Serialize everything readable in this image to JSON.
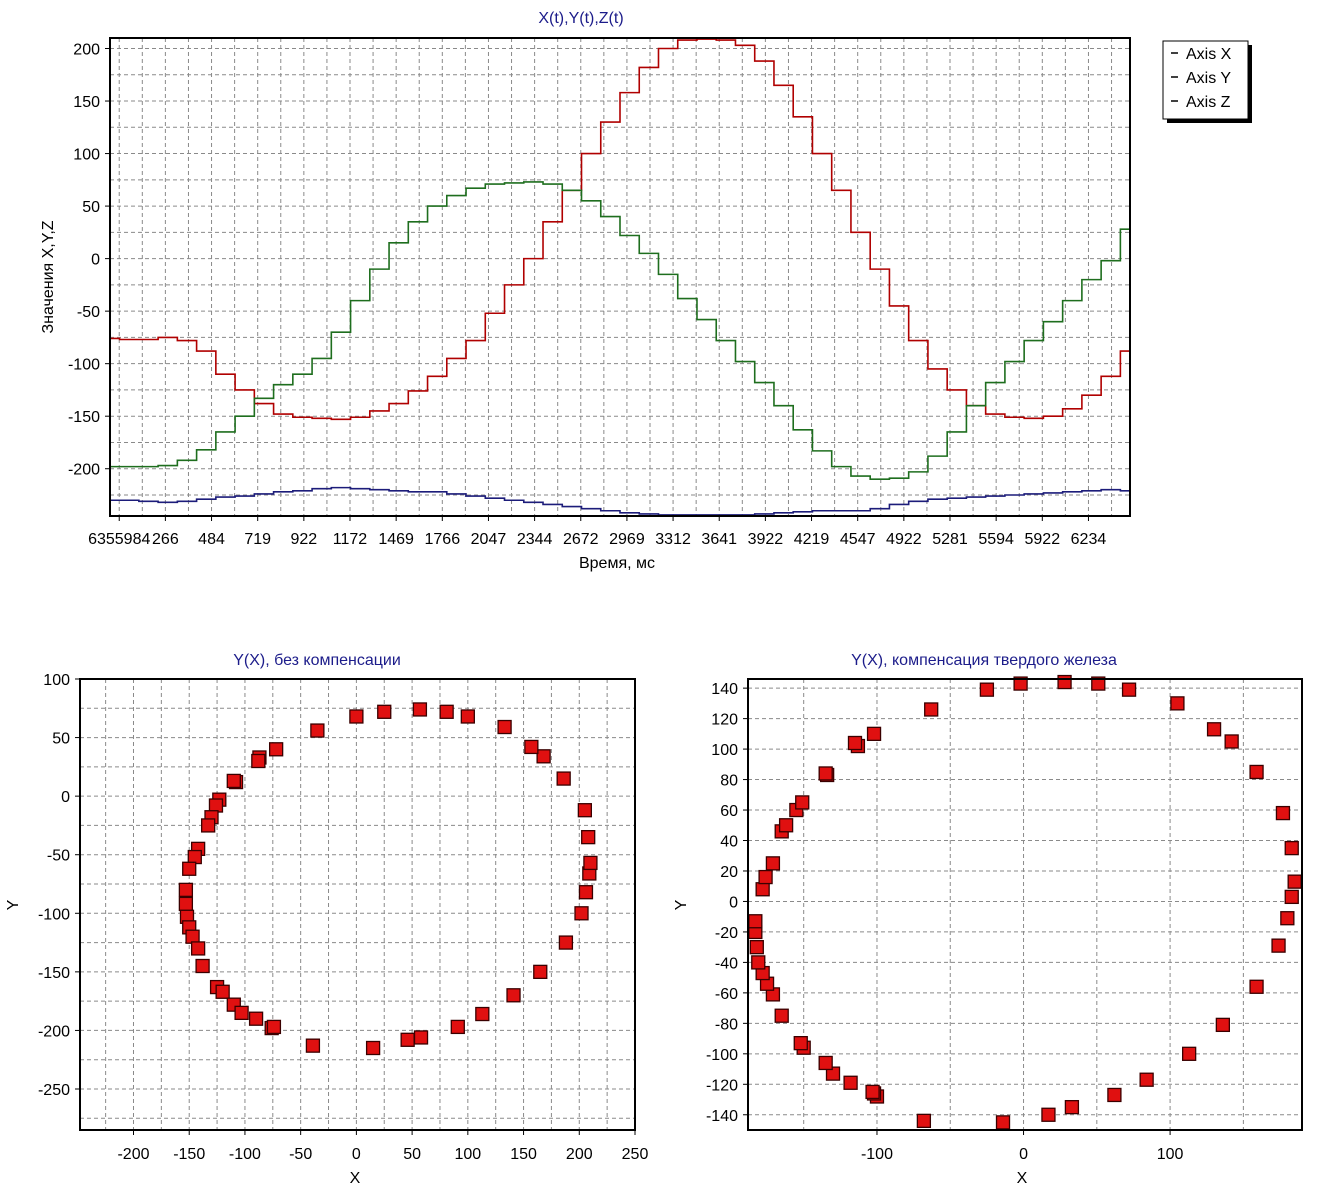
{
  "chart_data": [
    {
      "type": "line",
      "title": "X(t),Y(t),Z(t)",
      "xlabel": "Время, мс",
      "ylabel": "Значения X,Y,Z",
      "ylim": [
        -245,
        210
      ],
      "yticks": [
        200,
        150,
        100,
        50,
        0,
        -50,
        -100,
        -150,
        -200
      ],
      "xticks": [
        "6355984",
        "266",
        "484",
        "719",
        "922",
        "1172",
        "1469",
        "1766",
        "2047",
        "2344",
        "2672",
        "2969",
        "3312",
        "3641",
        "3922",
        "4219",
        "4547",
        "4922",
        "5281",
        "5594",
        "5922",
        "6234"
      ],
      "grid": true,
      "legend_position": "top-right",
      "series": [
        {
          "name": "Axis X",
          "color": "#b00000",
          "values": [
            -76,
            -77,
            -77,
            -75,
            -78,
            -88,
            -110,
            -125,
            -138,
            -148,
            -151,
            -152,
            -153,
            -151,
            -145,
            -138,
            -126,
            -112,
            -95,
            -78,
            -52,
            -25,
            0,
            35,
            65,
            100,
            130,
            158,
            182,
            200,
            208,
            209,
            208,
            203,
            188,
            165,
            135,
            100,
            65,
            25,
            -10,
            -45,
            -78,
            -105,
            -125,
            -140,
            -148,
            -151,
            -152,
            -150,
            -143,
            -130,
            -112,
            -88
          ]
        },
        {
          "name": "Axis Y",
          "color": "#1e6e1e",
          "values": [
            -198,
            -198,
            -198,
            -197,
            -192,
            -182,
            -165,
            -150,
            -133,
            -120,
            -110,
            -95,
            -70,
            -40,
            -10,
            15,
            35,
            50,
            60,
            67,
            71,
            72,
            73,
            71,
            65,
            55,
            40,
            22,
            5,
            -15,
            -38,
            -58,
            -78,
            -98,
            -118,
            -140,
            -163,
            -183,
            -198,
            -207,
            -210,
            -209,
            -203,
            -188,
            -165,
            -140,
            -118,
            -98,
            -78,
            -60,
            -40,
            -20,
            -2,
            28
          ]
        },
        {
          "name": "Axis Z",
          "color": "#1c1c7a",
          "values": [
            -230,
            -230,
            -231,
            -232,
            -231,
            -229,
            -227,
            -226,
            -224,
            -222,
            -221,
            -219,
            -218,
            -219,
            -220,
            -221,
            -222,
            -222,
            -224,
            -226,
            -228,
            -230,
            -232,
            -234,
            -236,
            -238,
            -240,
            -242,
            -243,
            -244,
            -244,
            -244,
            -244,
            -244,
            -243,
            -242,
            -241,
            -240,
            -240,
            -240,
            -238,
            -234,
            -231,
            -229,
            -228,
            -227,
            -226,
            -225,
            -224,
            -223,
            -222,
            -221,
            -220,
            -221
          ]
        }
      ]
    },
    {
      "type": "scatter",
      "title": "Y(X), без компенсации",
      "xlabel": "X",
      "ylabel": "Y",
      "xlim": [
        -248,
        250
      ],
      "ylim": [
        -285,
        100
      ],
      "xticks": [
        -200,
        -150,
        -100,
        -50,
        0,
        50,
        100,
        150,
        200,
        250
      ],
      "yticks": [
        100,
        50,
        0,
        -50,
        -100,
        -150,
        -200,
        -250
      ],
      "grid": true,
      "color": "#e01010",
      "points": [
        [
          -72,
          40
        ],
        [
          -87,
          33
        ],
        [
          -88,
          30
        ],
        [
          -108,
          12
        ],
        [
          -110,
          13
        ],
        [
          -123,
          -3
        ],
        [
          -126,
          -8
        ],
        [
          -130,
          -18
        ],
        [
          -133,
          -25
        ],
        [
          -142,
          -45
        ],
        [
          -145,
          -52
        ],
        [
          -150,
          -62
        ],
        [
          -153,
          -80
        ],
        [
          -153,
          -92
        ],
        [
          -152,
          -103
        ],
        [
          -150,
          -112
        ],
        [
          -147,
          -120
        ],
        [
          -142,
          -130
        ],
        [
          -138,
          -145
        ],
        [
          -125,
          -163
        ],
        [
          -120,
          -167
        ],
        [
          -110,
          -178
        ],
        [
          -103,
          -185
        ],
        [
          -90,
          -190
        ],
        [
          -76,
          -198
        ],
        [
          -74,
          -197
        ],
        [
          -39,
          -213
        ],
        [
          15,
          -215
        ],
        [
          46,
          -208
        ],
        [
          58,
          -206
        ],
        [
          91,
          -197
        ],
        [
          113,
          -186
        ],
        [
          141,
          -170
        ],
        [
          165,
          -150
        ],
        [
          188,
          -125
        ],
        [
          202,
          -100
        ],
        [
          206,
          -82
        ],
        [
          209,
          -66
        ],
        [
          210,
          -57
        ],
        [
          208,
          -35
        ],
        [
          205,
          -12
        ],
        [
          186,
          15
        ],
        [
          168,
          34
        ],
        [
          157,
          42
        ],
        [
          133,
          59
        ],
        [
          100,
          68
        ],
        [
          81,
          72
        ],
        [
          57,
          74
        ],
        [
          25,
          72
        ],
        [
          0,
          68
        ],
        [
          -35,
          56
        ]
      ]
    },
    {
      "type": "scatter",
      "title": "Y(X), компенсация твердого железа",
      "xlabel": "X",
      "ylabel": "Y",
      "xlim": [
        -188,
        190
      ],
      "ylim": [
        -150,
        146
      ],
      "xticks": [
        -100,
        0,
        100
      ],
      "yticks": [
        140,
        120,
        100,
        80,
        60,
        40,
        20,
        0,
        -20,
        -40,
        -60,
        -80,
        -100,
        -120,
        -140
      ],
      "grid": true,
      "color": "#e01010",
      "points": [
        [
          -63,
          126
        ],
        [
          -25,
          139
        ],
        [
          -2,
          143
        ],
        [
          28,
          144
        ],
        [
          51,
          143
        ],
        [
          72,
          139
        ],
        [
          105,
          130
        ],
        [
          130,
          113
        ],
        [
          142,
          105
        ],
        [
          159,
          85
        ],
        [
          177,
          58
        ],
        [
          183,
          35
        ],
        [
          185,
          13
        ],
        [
          183,
          3
        ],
        [
          180,
          -11
        ],
        [
          174,
          -29
        ],
        [
          159,
          -56
        ],
        [
          136,
          -81
        ],
        [
          113,
          -100
        ],
        [
          84,
          -117
        ],
        [
          62,
          -127
        ],
        [
          33,
          -135
        ],
        [
          17,
          -140
        ],
        [
          -14,
          -145
        ],
        [
          -68,
          -144
        ],
        [
          -100,
          -128
        ],
        [
          -102,
          -126
        ],
        [
          -103,
          -125
        ],
        [
          -118,
          -119
        ],
        [
          -130,
          -113
        ],
        [
          -135,
          -106
        ],
        [
          -150,
          -96
        ],
        [
          -152,
          -93
        ],
        [
          -165,
          -75
        ],
        [
          -171,
          -61
        ],
        [
          -175,
          -54
        ],
        [
          -178,
          -47
        ],
        [
          -181,
          -40
        ],
        [
          -182,
          -30
        ],
        [
          -183,
          -20
        ],
        [
          -183,
          -13
        ],
        [
          -178,
          8
        ],
        [
          -176,
          16
        ],
        [
          -171,
          25
        ],
        [
          -165,
          46
        ],
        [
          -162,
          50
        ],
        [
          -155,
          60
        ],
        [
          -151,
          65
        ],
        [
          -134,
          83
        ],
        [
          -135,
          84
        ],
        [
          -113,
          102
        ],
        [
          -115,
          104
        ],
        [
          -102,
          110
        ]
      ]
    }
  ]
}
